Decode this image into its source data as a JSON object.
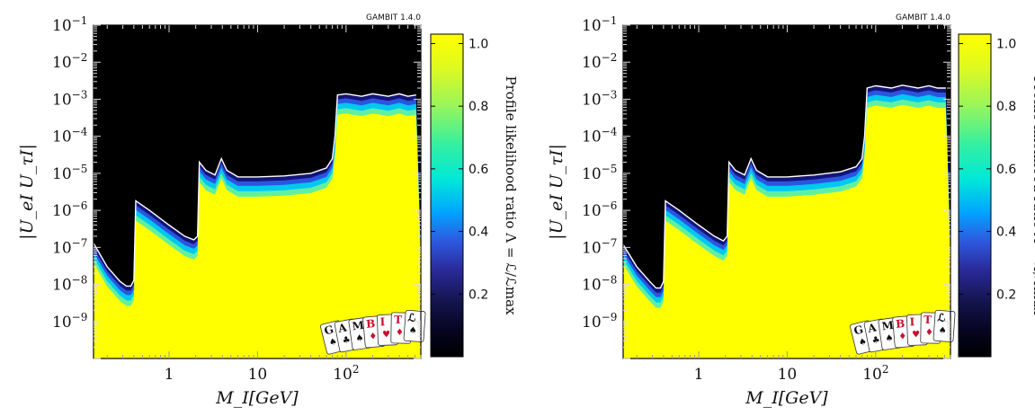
{
  "chart_data": [
    {
      "type": "heatmap",
      "version_label": "GAMBIT 1.4.0",
      "x_scale": "log",
      "y_scale": "log",
      "xlim": [
        0.14,
        700
      ],
      "ylim": [
        1e-10,
        0.1
      ],
      "x_ticks": [
        {
          "value": 1,
          "label": "1"
        },
        {
          "value": 10,
          "label": "10"
        },
        {
          "value": 100,
          "label": "10",
          "sup": "2"
        }
      ],
      "y_ticks": [
        {
          "value": 1e-09,
          "label": "10",
          "sup": "−9"
        },
        {
          "value": 1e-08,
          "label": "10",
          "sup": "−8"
        },
        {
          "value": 1e-07,
          "label": "10",
          "sup": "−7"
        },
        {
          "value": 1e-06,
          "label": "10",
          "sup": "−6"
        },
        {
          "value": 1e-05,
          "label": "10",
          "sup": "−5"
        },
        {
          "value": 0.0001,
          "label": "10",
          "sup": "−4"
        },
        {
          "value": 0.001,
          "label": "10",
          "sup": "−3"
        },
        {
          "value": 0.01,
          "label": "10",
          "sup": "−2"
        },
        {
          "value": 0.1,
          "label": "10",
          "sup": "−1"
        }
      ],
      "xlabel": "M_I[GeV]",
      "ylabel": "|U_eI U_τI|",
      "colorbar": {
        "label": "Profile likelihood ratio Λ = ℒ/ℒmax",
        "ticks": [
          {
            "value": 0.2,
            "label": "0.2"
          },
          {
            "value": 0.4,
            "label": "0.4"
          },
          {
            "value": 0.6,
            "label": "0.6"
          },
          {
            "value": 0.8,
            "label": "0.8"
          },
          {
            "value": 1.0,
            "label": "1.0"
          }
        ],
        "range": [
          0,
          1.03
        ]
      },
      "boundary": {
        "x": [
          0.14,
          0.2,
          0.28,
          0.33,
          0.37,
          0.4,
          0.42,
          0.6,
          1.0,
          1.5,
          1.9,
          2.1,
          2.2,
          2.6,
          3.3,
          3.9,
          4.5,
          6,
          10,
          20,
          40,
          60,
          70,
          75,
          80,
          100,
          150,
          200,
          300,
          400,
          500,
          620
        ],
        "y": [
          1.3e-07,
          3e-08,
          1.2e-08,
          9e-09,
          9e-09,
          1.3e-08,
          1.8e-06,
          1e-06,
          4e-07,
          2e-07,
          1.6e-07,
          2e-07,
          2e-05,
          1.2e-05,
          9e-06,
          2.5e-05,
          1.2e-05,
          8e-06,
          8e-06,
          8.5e-06,
          1e-05,
          1.4e-05,
          2.5e-05,
          0.0001,
          0.0013,
          0.0014,
          0.0012,
          0.0014,
          0.0012,
          0.0014,
          0.0012,
          0.0013
        ]
      },
      "logo_letters": [
        "G",
        "A",
        "M",
        "B",
        "I",
        "T",
        "ℒ"
      ]
    },
    {
      "type": "heatmap",
      "version_label": "GAMBIT 1.4.0",
      "x_scale": "log",
      "y_scale": "log",
      "xlim": [
        0.14,
        700
      ],
      "ylim": [
        1e-10,
        0.1
      ],
      "x_ticks": [
        {
          "value": 1,
          "label": "1"
        },
        {
          "value": 10,
          "label": "10"
        },
        {
          "value": 100,
          "label": "10",
          "sup": "2"
        }
      ],
      "y_ticks": [
        {
          "value": 1e-09,
          "label": "10",
          "sup": "−9"
        },
        {
          "value": 1e-08,
          "label": "10",
          "sup": "−8"
        },
        {
          "value": 1e-07,
          "label": "10",
          "sup": "−7"
        },
        {
          "value": 1e-06,
          "label": "10",
          "sup": "−6"
        },
        {
          "value": 1e-05,
          "label": "10",
          "sup": "−5"
        },
        {
          "value": 0.0001,
          "label": "10",
          "sup": "−4"
        },
        {
          "value": 0.001,
          "label": "10",
          "sup": "−3"
        },
        {
          "value": 0.01,
          "label": "10",
          "sup": "−2"
        },
        {
          "value": 0.1,
          "label": "10",
          "sup": "−1"
        }
      ],
      "xlabel": "M_I[GeV]",
      "ylabel": "|U_eI U_τI|",
      "colorbar": {
        "label": "Profile likelihood ratio Λ = ℒ/ℒmax",
        "ticks": [
          {
            "value": 0.2,
            "label": "0.2"
          },
          {
            "value": 0.4,
            "label": "0.4"
          },
          {
            "value": 0.6,
            "label": "0.6"
          },
          {
            "value": 0.8,
            "label": "0.8"
          },
          {
            "value": 1.0,
            "label": "1.0"
          }
        ],
        "range": [
          0,
          1.03
        ]
      },
      "boundary": {
        "x": [
          0.14,
          0.2,
          0.28,
          0.33,
          0.37,
          0.4,
          0.42,
          0.6,
          1.0,
          1.5,
          1.9,
          2.1,
          2.2,
          2.6,
          3.3,
          3.9,
          4.5,
          6,
          10,
          20,
          40,
          60,
          70,
          75,
          80,
          100,
          150,
          200,
          300,
          400,
          500,
          620
        ],
        "y": [
          1.2e-07,
          3e-08,
          1.2e-08,
          8e-09,
          8e-09,
          1.2e-08,
          1.8e-06,
          1e-06,
          4e-07,
          2e-07,
          1.5e-07,
          2e-07,
          2e-05,
          1.2e-05,
          9e-06,
          2.5e-05,
          1.2e-05,
          8e-06,
          8e-06,
          9e-06,
          1.1e-05,
          1.5e-05,
          2.5e-05,
          0.0001,
          0.002,
          0.0023,
          0.002,
          0.0024,
          0.002,
          0.0023,
          0.002,
          0.002
        ]
      },
      "logo_letters": [
        "G",
        "A",
        "M",
        "B",
        "I",
        "T",
        "ℒ"
      ]
    }
  ]
}
